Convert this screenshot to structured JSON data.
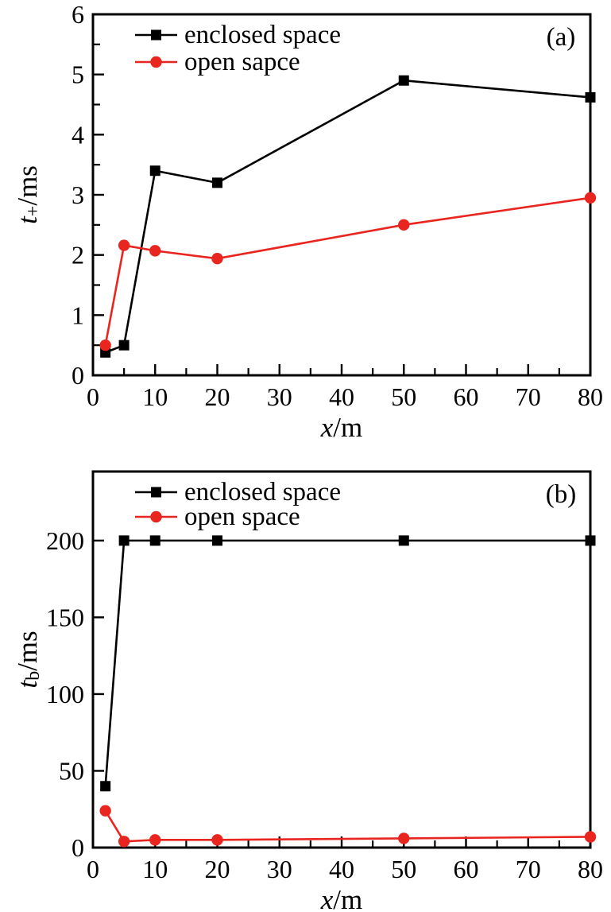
{
  "page": {
    "background": "#ffffff"
  },
  "colors": {
    "series_black": "#000000",
    "series_red": "#e8251f",
    "frame": "#000000"
  },
  "chart_data": [
    {
      "type": "line",
      "panel_label": "(a)",
      "xlabel_var": "x",
      "xlabel_unit": "/m",
      "ylabel_var": "t",
      "ylabel_sub": "+",
      "ylabel_unit": "/ms",
      "xlim": [
        0,
        80
      ],
      "ylim": [
        0,
        6
      ],
      "xticks": [
        0,
        10,
        20,
        30,
        40,
        50,
        60,
        70,
        80
      ],
      "xminor_step": 5,
      "yticks": [
        0,
        1,
        2,
        3,
        4,
        5,
        6
      ],
      "yminor_step": 0.5,
      "grid": false,
      "legend_position": "top-left",
      "x": [
        2,
        5,
        10,
        20,
        50,
        80
      ],
      "series": [
        {
          "name": "enclosed space",
          "color": "#000000",
          "marker": "square",
          "values": [
            0.38,
            0.5,
            3.4,
            3.2,
            4.9,
            4.62
          ]
        },
        {
          "name": "open sapce",
          "color": "#e8251f",
          "marker": "circle",
          "values": [
            0.5,
            2.16,
            2.07,
            1.94,
            2.5,
            2.95
          ]
        }
      ]
    },
    {
      "type": "line",
      "panel_label": "(b)",
      "xlabel_var": "x",
      "xlabel_unit": "/m",
      "ylabel_var": "t",
      "ylabel_sub": "b",
      "ylabel_unit": "/ms",
      "xlim": [
        0,
        80
      ],
      "ylim": [
        0,
        245
      ],
      "xticks": [
        0,
        10,
        20,
        30,
        40,
        50,
        60,
        70,
        80
      ],
      "xminor_step": 5,
      "yticks": [
        0,
        50,
        100,
        150,
        200
      ],
      "yminor_step": null,
      "grid": false,
      "legend_position": "top-left",
      "x": [
        2,
        5,
        10,
        20,
        50,
        80
      ],
      "series": [
        {
          "name": "enclosed space",
          "color": "#000000",
          "marker": "square",
          "values": [
            40,
            200,
            200,
            200,
            200,
            200
          ]
        },
        {
          "name": "open space",
          "color": "#e8251f",
          "marker": "circle",
          "values": [
            24,
            4,
            5,
            5,
            6,
            7
          ]
        }
      ]
    }
  ]
}
